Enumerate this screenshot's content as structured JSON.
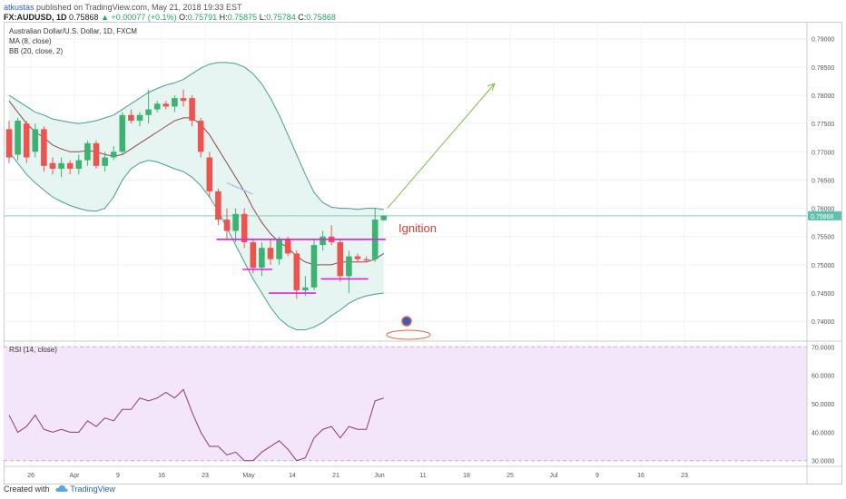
{
  "header": {
    "author": "atkustas",
    "published_text": "published on TradingView.com, May 21, 2018 19:33 EST",
    "symbol": "FX:AUDUSD, 1D",
    "last": "0.75868",
    "change": "▲ +0.00077 (+0.1%)",
    "ohlc_o_label": "O:",
    "ohlc_o": "0.75791",
    "ohlc_h_label": "H:",
    "ohlc_h": "0.75875",
    "ohlc_l_label": "L:",
    "ohlc_l": "0.75784",
    "ohlc_c_label": "C:",
    "ohlc_c": "0.75868"
  },
  "legend": {
    "title": "Australian Dollar/U.S. Dollar, 1D, FXCM",
    "ma": "MA (8, close)",
    "bb": "BB (20, close, 2)",
    "rsi": "RSI (14, close)"
  },
  "annotation": {
    "ignition": "Ignition"
  },
  "colors": {
    "bull": "#26a69a",
    "bull_fill": "#3cb371",
    "bear": "#ef5350",
    "bb_band": "#4a9a96",
    "bb_fill": "#e3f4f0",
    "ma": "#8b4a4a",
    "rsi_line": "#8e3a6e",
    "rsi_fill": "#f3e6fb",
    "support": "#e31ee3",
    "arrow": "#7cbc4a",
    "ignition": "#e53935",
    "price_line": "#7dcfc0"
  },
  "footer": {
    "created_with": "Created with",
    "brand": "TradingView"
  },
  "chart_data": [
    {
      "type": "candlestick",
      "title": "Australian Dollar/U.S. Dollar, 1D, FXCM",
      "ylim": [
        0.7365,
        0.793
      ],
      "y_ticks": [
        "0.79000",
        "0.78500",
        "0.78000",
        "0.77500",
        "0.77000",
        "0.76500",
        "0.76000",
        "0.75500",
        "0.75000",
        "0.74500",
        "0.74000"
      ],
      "y_tick_values": [
        0.79,
        0.785,
        0.78,
        0.775,
        0.77,
        0.765,
        0.76,
        0.755,
        0.75,
        0.745,
        0.74
      ],
      "current_price_label": "0.75868",
      "current_price": 0.75868,
      "x_labels": [
        "26",
        "Apr",
        "9",
        "16",
        "23",
        "May",
        "14",
        "21",
        "Jun",
        "11",
        "18",
        "25",
        "Jul",
        "9",
        "16",
        "23"
      ],
      "x_label_index": [
        0,
        5,
        10,
        15,
        20,
        25,
        30,
        35,
        40,
        45,
        50,
        55,
        60,
        65,
        70,
        75
      ],
      "candles": [
        {
          "o": 0.774,
          "h": 0.7755,
          "l": 0.768,
          "c": 0.769
        },
        {
          "o": 0.7695,
          "h": 0.776,
          "l": 0.7685,
          "c": 0.7755
        },
        {
          "o": 0.775,
          "h": 0.7755,
          "l": 0.768,
          "c": 0.769
        },
        {
          "o": 0.77,
          "h": 0.775,
          "l": 0.769,
          "c": 0.774
        },
        {
          "o": 0.774,
          "h": 0.7745,
          "l": 0.7665,
          "c": 0.7675
        },
        {
          "o": 0.768,
          "h": 0.769,
          "l": 0.766,
          "c": 0.767
        },
        {
          "o": 0.767,
          "h": 0.769,
          "l": 0.7655,
          "c": 0.768
        },
        {
          "o": 0.768,
          "h": 0.7685,
          "l": 0.766,
          "c": 0.767
        },
        {
          "o": 0.767,
          "h": 0.7695,
          "l": 0.766,
          "c": 0.7685
        },
        {
          "o": 0.7685,
          "h": 0.772,
          "l": 0.7675,
          "c": 0.7715
        },
        {
          "o": 0.7715,
          "h": 0.772,
          "l": 0.767,
          "c": 0.7675
        },
        {
          "o": 0.7675,
          "h": 0.77,
          "l": 0.7665,
          "c": 0.769
        },
        {
          "o": 0.769,
          "h": 0.771,
          "l": 0.7685,
          "c": 0.77
        },
        {
          "o": 0.77,
          "h": 0.777,
          "l": 0.7695,
          "c": 0.7765
        },
        {
          "o": 0.7765,
          "h": 0.7775,
          "l": 0.775,
          "c": 0.7755
        },
        {
          "o": 0.7755,
          "h": 0.777,
          "l": 0.7745,
          "c": 0.7765
        },
        {
          "o": 0.7765,
          "h": 0.781,
          "l": 0.775,
          "c": 0.7775
        },
        {
          "o": 0.7775,
          "h": 0.779,
          "l": 0.777,
          "c": 0.7785
        },
        {
          "o": 0.7785,
          "h": 0.779,
          "l": 0.7775,
          "c": 0.778
        },
        {
          "o": 0.778,
          "h": 0.78,
          "l": 0.777,
          "c": 0.7795
        },
        {
          "o": 0.7795,
          "h": 0.781,
          "l": 0.778,
          "c": 0.779
        },
        {
          "o": 0.7795,
          "h": 0.78,
          "l": 0.7745,
          "c": 0.7755
        },
        {
          "o": 0.7755,
          "h": 0.776,
          "l": 0.769,
          "c": 0.77
        },
        {
          "o": 0.769,
          "h": 0.77,
          "l": 0.762,
          "c": 0.763
        },
        {
          "o": 0.763,
          "h": 0.7635,
          "l": 0.757,
          "c": 0.758
        },
        {
          "o": 0.758,
          "h": 0.76,
          "l": 0.7545,
          "c": 0.756
        },
        {
          "o": 0.756,
          "h": 0.76,
          "l": 0.754,
          "c": 0.759
        },
        {
          "o": 0.759,
          "h": 0.76,
          "l": 0.753,
          "c": 0.754
        },
        {
          "o": 0.754,
          "h": 0.7545,
          "l": 0.7485,
          "c": 0.7495
        },
        {
          "o": 0.7495,
          "h": 0.754,
          "l": 0.748,
          "c": 0.753
        },
        {
          "o": 0.753,
          "h": 0.7545,
          "l": 0.75,
          "c": 0.751
        },
        {
          "o": 0.751,
          "h": 0.755,
          "l": 0.75,
          "c": 0.7545
        },
        {
          "o": 0.7545,
          "h": 0.755,
          "l": 0.7515,
          "c": 0.752
        },
        {
          "o": 0.752,
          "h": 0.7525,
          "l": 0.744,
          "c": 0.7455
        },
        {
          "o": 0.7455,
          "h": 0.748,
          "l": 0.7445,
          "c": 0.746
        },
        {
          "o": 0.746,
          "h": 0.7545,
          "l": 0.7455,
          "c": 0.7535
        },
        {
          "o": 0.7535,
          "h": 0.756,
          "l": 0.7525,
          "c": 0.755
        },
        {
          "o": 0.755,
          "h": 0.757,
          "l": 0.7535,
          "c": 0.754
        },
        {
          "o": 0.754,
          "h": 0.7545,
          "l": 0.747,
          "c": 0.748
        },
        {
          "o": 0.748,
          "h": 0.7525,
          "l": 0.745,
          "c": 0.7515
        },
        {
          "o": 0.7515,
          "h": 0.752,
          "l": 0.7505,
          "c": 0.751
        },
        {
          "o": 0.751,
          "h": 0.7515,
          "l": 0.7505,
          "c": 0.7508
        },
        {
          "o": 0.751,
          "h": 0.76,
          "l": 0.7505,
          "c": 0.758
        },
        {
          "o": 0.7579,
          "h": 0.7588,
          "l": 0.7578,
          "c": 0.7587
        }
      ],
      "ma_8": [
        0.779,
        0.777,
        0.775,
        0.7735,
        0.7725,
        0.7712,
        0.7705,
        0.77,
        0.77,
        0.7702,
        0.77,
        0.7695,
        0.7692,
        0.7695,
        0.7705,
        0.7715,
        0.7725,
        0.7735,
        0.7745,
        0.7755,
        0.776,
        0.776,
        0.7748,
        0.773,
        0.7705,
        0.768,
        0.7655,
        0.763,
        0.76,
        0.7575,
        0.7555,
        0.754,
        0.753,
        0.7515,
        0.7505,
        0.75,
        0.75,
        0.75,
        0.7505,
        0.7505,
        0.7505,
        0.7505,
        0.751,
        0.752
      ],
      "bb_upper": [
        0.78,
        0.779,
        0.778,
        0.777,
        0.7765,
        0.7758,
        0.7755,
        0.7752,
        0.775,
        0.7752,
        0.7755,
        0.776,
        0.7765,
        0.7775,
        0.7785,
        0.7795,
        0.7805,
        0.7812,
        0.7818,
        0.7822,
        0.7828,
        0.7838,
        0.7848,
        0.7855,
        0.7858,
        0.7858,
        0.7856,
        0.785,
        0.7838,
        0.782,
        0.7795,
        0.7765,
        0.773,
        0.7695,
        0.766,
        0.7628,
        0.761,
        0.7602,
        0.76,
        0.76,
        0.7598,
        0.76,
        0.76,
        0.7598
      ],
      "bb_lower": [
        0.77,
        0.768,
        0.766,
        0.7645,
        0.7632,
        0.762,
        0.7612,
        0.7605,
        0.76,
        0.7596,
        0.7595,
        0.76,
        0.762,
        0.765,
        0.767,
        0.768,
        0.7685,
        0.7682,
        0.7676,
        0.767,
        0.7665,
        0.7655,
        0.764,
        0.762,
        0.7595,
        0.7565,
        0.7535,
        0.7505,
        0.7475,
        0.745,
        0.7425,
        0.7405,
        0.7392,
        0.7385,
        0.7385,
        0.739,
        0.7398,
        0.741,
        0.742,
        0.7432,
        0.744,
        0.7445,
        0.7448,
        0.745
      ],
      "support_levels": [
        {
          "from": 24,
          "to": 43,
          "y": 0.7545
        },
        {
          "from": 27,
          "to": 30,
          "y": 0.7492
        },
        {
          "from": 30,
          "to": 35,
          "y": 0.745
        },
        {
          "from": 36,
          "to": 41,
          "y": 0.7475
        }
      ]
    },
    {
      "type": "line",
      "title": "RSI (14, close)",
      "ylim": [
        28,
        72
      ],
      "y_ticks": [
        "70.0000",
        "60.0000",
        "50.0000",
        "40.0000",
        "30.0000"
      ],
      "y_tick_values": [
        70,
        60,
        50,
        40,
        30
      ],
      "band": [
        30,
        70
      ],
      "values": [
        46,
        40,
        42,
        46,
        41,
        40,
        41,
        40,
        40,
        44,
        42,
        45,
        44,
        48,
        48,
        52,
        51,
        52,
        54,
        52,
        55,
        47,
        40,
        35,
        35,
        32,
        33,
        30,
        30,
        33,
        35,
        37,
        34,
        30,
        31,
        38,
        41,
        42,
        38,
        42,
        41,
        41,
        51,
        52
      ]
    }
  ]
}
